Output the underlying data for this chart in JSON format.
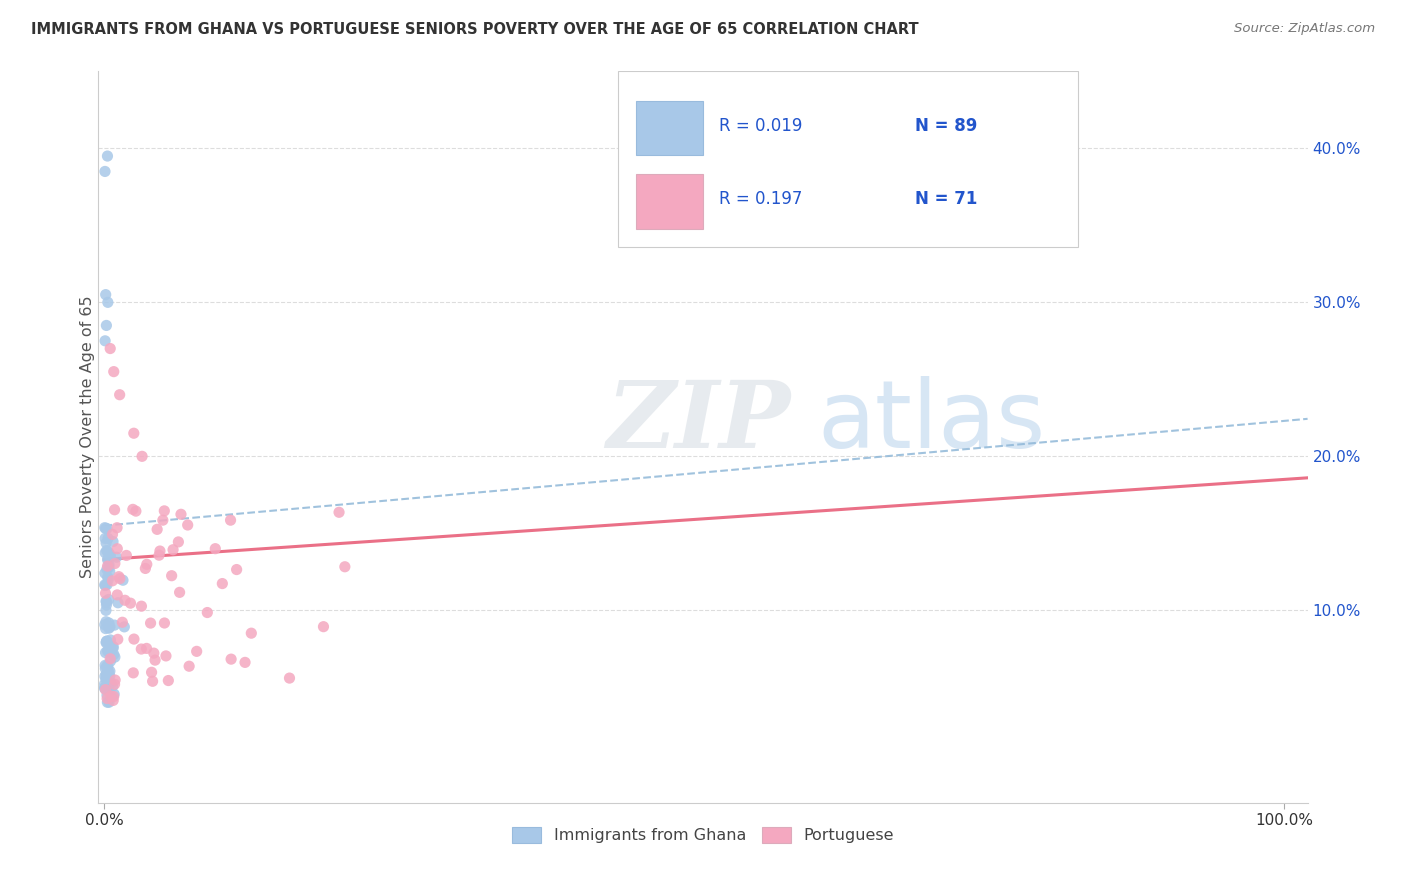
{
  "title": "IMMIGRANTS FROM GHANA VS PORTUGUESE SENIORS POVERTY OVER THE AGE OF 65 CORRELATION CHART",
  "source": "Source: ZipAtlas.com",
  "ylabel": "Seniors Poverty Over the Age of 65",
  "legend_r1": "R = 0.019",
  "legend_n1": "N = 89",
  "legend_r2": "R = 0.197",
  "legend_n2": "N = 71",
  "label1": "Immigrants from Ghana",
  "label2": "Portuguese",
  "color1": "#a8c8e8",
  "color2": "#f4a8c0",
  "line1_color": "#90b8d8",
  "line2_color": "#e8607a",
  "title_color": "#333333",
  "source_color": "#777777",
  "legend_text_color": "#2255cc",
  "ytick_color": "#2255cc",
  "background_color": "#ffffff",
  "xlim": [
    -0.005,
    1.02
  ],
  "ylim": [
    -0.025,
    0.45
  ],
  "yticks": [
    0.1,
    0.2,
    0.3,
    0.4
  ],
  "ytick_labels": [
    "10.0%",
    "20.0%",
    "30.0%",
    "40.0%"
  ],
  "xticks": [
    0.0,
    1.0
  ],
  "xtick_labels": [
    "0.0%",
    "100.0%"
  ],
  "ghana_seed": 123,
  "portuguese_seed": 456
}
